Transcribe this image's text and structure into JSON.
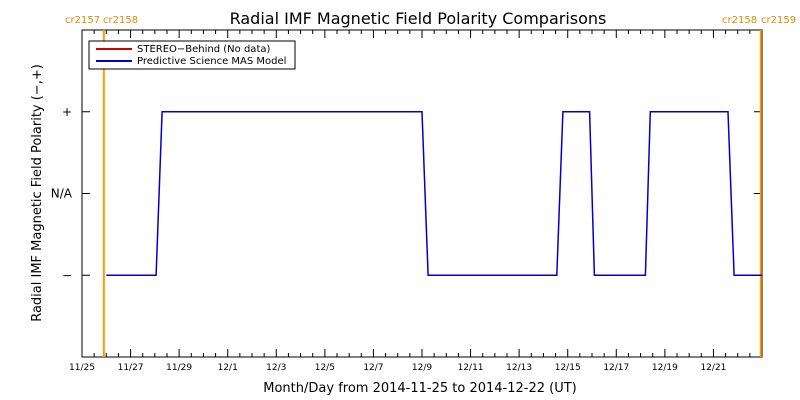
{
  "colors": {
    "stereo_behind": "#cc0000",
    "model": "#0000cc",
    "carrington_boundary": "#ff9900",
    "axes": "#000000"
  },
  "chart_data": {
    "type": "line",
    "title": "Radial IMF Magnetic Field Polarity Comparisons",
    "xlabel": "Month/Day from 2014-11-25 to 2014-12-22 (UT)",
    "ylabel": "Radial IMF Magnetic Field Polarity (−,+)",
    "x_unit": "days since 2014-11-25 00:00 UT",
    "xlim": [
      0,
      28
    ],
    "ylim": [
      -2,
      2
    ],
    "xticks": [
      {
        "x": 0,
        "label": "11/25"
      },
      {
        "x": 2,
        "label": "11/27"
      },
      {
        "x": 4,
        "label": "11/29"
      },
      {
        "x": 6,
        "label": "12/1"
      },
      {
        "x": 8,
        "label": "12/3"
      },
      {
        "x": 10,
        "label": "12/5"
      },
      {
        "x": 12,
        "label": "12/7"
      },
      {
        "x": 14,
        "label": "12/9"
      },
      {
        "x": 16,
        "label": "12/11"
      },
      {
        "x": 18,
        "label": "12/13"
      },
      {
        "x": 20,
        "label": "12/15"
      },
      {
        "x": 22,
        "label": "12/17"
      },
      {
        "x": 24,
        "label": "12/19"
      },
      {
        "x": 26,
        "label": "12/21"
      }
    ],
    "yticks": [
      {
        "y": 1,
        "label": "+"
      },
      {
        "y": 0,
        "label": "N/A"
      },
      {
        "y": -1,
        "label": "−"
      }
    ],
    "legend": {
      "position": "top-left",
      "entries": [
        {
          "label": "STEREO−Behind (No data)",
          "color": "#cc0000"
        },
        {
          "label": "Predictive Science MAS Model",
          "color": "#0000cc"
        }
      ]
    },
    "series": [
      {
        "name": "STEREO−Behind (No data)",
        "color": "#cc0000",
        "x": [],
        "y": []
      },
      {
        "name": "Predictive Science MAS Model",
        "color": "#0000cc",
        "x": [
          1.0,
          3.05,
          3.3,
          4.0,
          14.0,
          14.25,
          15.0,
          19.55,
          19.8,
          20.0,
          20.9,
          21.1,
          23.2,
          23.4,
          24.5,
          26.6,
          26.85,
          27.2,
          28.0
        ],
        "y": [
          -1,
          -1,
          1,
          1,
          1,
          -1,
          -1,
          -1,
          1,
          1,
          1,
          -1,
          -1,
          1,
          1,
          1,
          -1,
          -1,
          -1
        ]
      }
    ],
    "carrington_boundaries": [
      {
        "x": 0.9,
        "label_left": "cr2157",
        "label_right": "cr2158",
        "side": "top-left"
      },
      {
        "x": 27.95,
        "label_left": "cr2158",
        "label_right": "cr2159",
        "side": "top-right"
      }
    ],
    "grid": false
  }
}
